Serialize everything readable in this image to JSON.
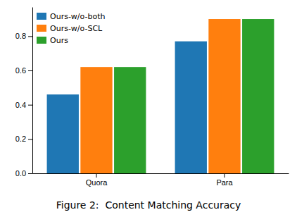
{
  "chart_data": {
    "type": "bar",
    "title": "Figure 2:  Content Matching Accuracy",
    "categories": [
      "Quora",
      "Para"
    ],
    "series": [
      {
        "name": "Ours-w/o-both",
        "color": "#1f77b4",
        "values": [
          0.46,
          0.77
        ]
      },
      {
        "name": "Ours-w/o-SCL",
        "color": "#ff7f0e",
        "values": [
          0.62,
          0.9
        ]
      },
      {
        "name": "Ours",
        "color": "#2ca02c",
        "values": [
          0.62,
          0.9
        ]
      }
    ],
    "ylim": [
      0.0,
      0.97
    ],
    "yticks": [
      {
        "value": 0.0,
        "label": "0.0"
      },
      0.2,
      0.4,
      0.6,
      0.8
    ],
    "legend": "upper-left"
  }
}
